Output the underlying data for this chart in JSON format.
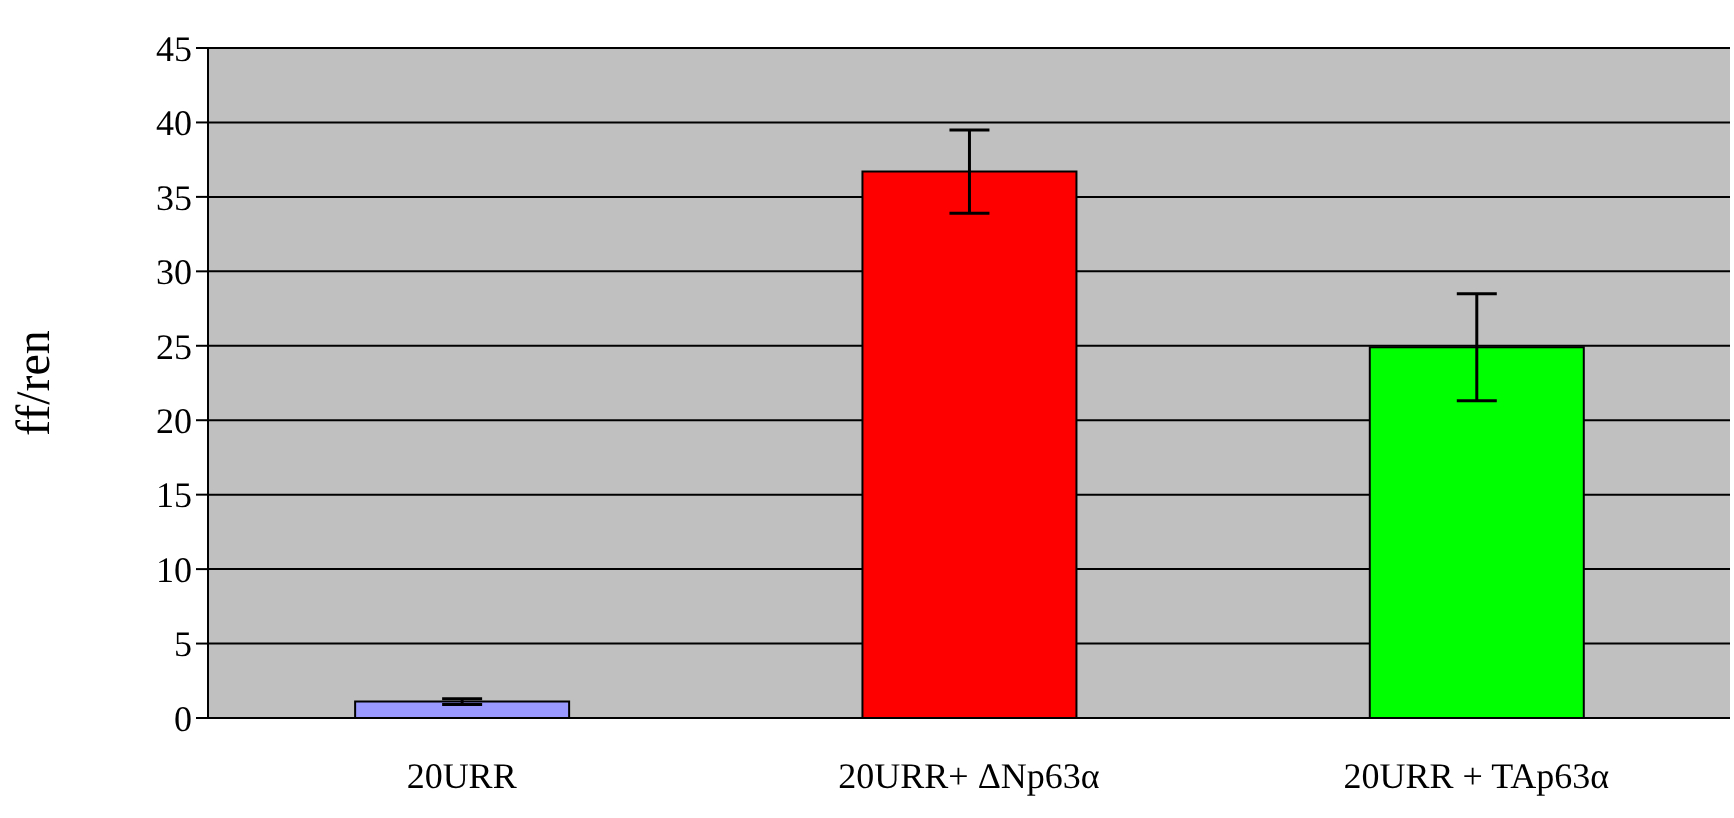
{
  "chart_data": {
    "type": "bar",
    "ylabel": "ff/ren",
    "categories": [
      "20URR",
      "20URR+ ΔNp63α",
      "20URR + TAp63α"
    ],
    "values": [
      1.1,
      36.7,
      24.9
    ],
    "errors": [
      0.2,
      2.8,
      3.6
    ],
    "colors": [
      "#9999ff",
      "#ff0000",
      "#00ff00"
    ],
    "ylim": [
      0,
      45
    ],
    "yticks": [
      0,
      5,
      10,
      15,
      20,
      25,
      30,
      35,
      40,
      45
    ],
    "grid": "y",
    "legend": false
  }
}
